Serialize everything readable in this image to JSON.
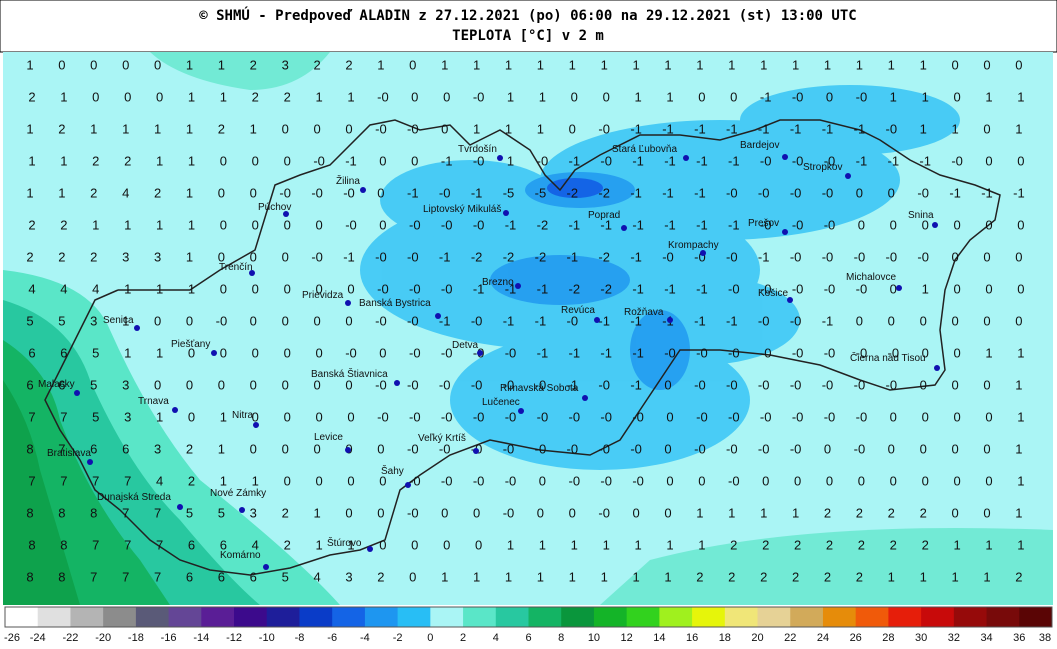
{
  "header": {
    "title": "© SHMÚ - Predpoveď ALADIN z 27.12.2021 (po) 06:00 na 29.12.2021 (st) 13:00 UTC",
    "subtitle": "TEPLOTA [°C] v 2 m"
  },
  "grid": {
    "rows": [
      [
        "1",
        "0",
        "0",
        "0",
        "0",
        "1",
        "1",
        "2",
        "3",
        "2",
        "2",
        "1",
        "0",
        "1",
        "1",
        "1",
        "1",
        "1",
        "1",
        "1",
        "1",
        "1",
        "1",
        "1",
        "1",
        "1",
        "1",
        "1",
        "1",
        "0",
        "0",
        "0"
      ],
      [
        "2",
        "1",
        "0",
        "0",
        "0",
        "1",
        "1",
        "2",
        "2",
        "1",
        "1",
        "-0",
        "0",
        "0",
        "-0",
        "1",
        "1",
        "0",
        "0",
        "1",
        "1",
        "0",
        "0",
        "-1",
        "-0",
        "0",
        "-0",
        "1",
        "1",
        "0",
        "1",
        "1"
      ],
      [
        "1",
        "2",
        "1",
        "1",
        "1",
        "1",
        "2",
        "1",
        "0",
        "0",
        "0",
        "-0",
        "-0",
        "0",
        "1",
        "1",
        "1",
        "0",
        "-0",
        "-1",
        "-1",
        "-1",
        "-1",
        "-1",
        "-1",
        "-1",
        "-1",
        "-0",
        "1",
        "1",
        "0",
        "1"
      ],
      [
        "1",
        "1",
        "2",
        "2",
        "1",
        "1",
        "0",
        "0",
        "0",
        "-0",
        "-1",
        "0",
        "0",
        "-1",
        "-0",
        "1",
        "-0",
        "-1",
        "-0",
        "-1",
        "-1",
        "-1",
        "-1",
        "-0",
        "-0",
        "-0",
        "-1",
        "-1",
        "-1",
        "-0",
        "0",
        "0"
      ],
      [
        "1",
        "1",
        "2",
        "4",
        "2",
        "1",
        "0",
        "0",
        "-0",
        "-0",
        "-0",
        "0",
        "-1",
        "-0",
        "-1",
        "-5",
        "-5",
        "-2",
        "-2",
        "-1",
        "-1",
        "-1",
        "-0",
        "-0",
        "-0",
        "-0",
        "0",
        "0",
        "-0",
        "-1",
        "-1",
        "-1"
      ],
      [
        "2",
        "2",
        "1",
        "1",
        "1",
        "1",
        "0",
        "0",
        "0",
        "0",
        "-0",
        "0",
        "-0",
        "-0",
        "-0",
        "-1",
        "-2",
        "-1",
        "-1",
        "-1",
        "-1",
        "-1",
        "-1",
        "-0",
        "-0",
        "-0",
        "0",
        "0",
        "0",
        "0",
        "0",
        "0"
      ],
      [
        "2",
        "2",
        "2",
        "3",
        "3",
        "1",
        "0",
        "0",
        "0",
        "-0",
        "-1",
        "-0",
        "-0",
        "-1",
        "-2",
        "-2",
        "-2",
        "-1",
        "-2",
        "-1",
        "-0",
        "-0",
        "-0",
        "-1",
        "-0",
        "-0",
        "-0",
        "-0",
        "-0",
        "0",
        "0",
        "0"
      ],
      [
        "4",
        "4",
        "4",
        "1",
        "1",
        "1",
        "0",
        "0",
        "0",
        "0",
        "0",
        "-0",
        "-0",
        "-0",
        "-1",
        "-1",
        "-1",
        "-2",
        "-2",
        "-1",
        "-1",
        "-1",
        "-0",
        "-0",
        "-0",
        "-0",
        "-0",
        "0",
        "1",
        "0",
        "0",
        "0"
      ],
      [
        "5",
        "5",
        "3",
        "1",
        "0",
        "0",
        "-0",
        "0",
        "0",
        "0",
        "0",
        "-0",
        "-0",
        "-1",
        "-0",
        "-1",
        "-1",
        "-0",
        "-1",
        "-1",
        "-1",
        "-1",
        "-1",
        "-0",
        "-0",
        "-1",
        "0",
        "0",
        "0",
        "0",
        "0",
        "0"
      ],
      [
        "6",
        "6",
        "5",
        "1",
        "1",
        "0",
        "0",
        "0",
        "0",
        "0",
        "-0",
        "0",
        "-0",
        "-0",
        "-0",
        "-0",
        "-1",
        "-1",
        "-1",
        "-1",
        "-0",
        "-0",
        "-0",
        "-0",
        "-0",
        "-0",
        "-0",
        "-0",
        "0",
        "0",
        "1",
        "1"
      ],
      [
        "6",
        "6",
        "5",
        "3",
        "0",
        "0",
        "0",
        "0",
        "0",
        "0",
        "0",
        "-0",
        "-0",
        "-0",
        "-0",
        "-0",
        "-0",
        "-1",
        "-0",
        "-1",
        "0",
        "-0",
        "-0",
        "-0",
        "-0",
        "-0",
        "-0",
        "-0",
        "0",
        "0",
        "0",
        "1"
      ],
      [
        "7",
        "7",
        "5",
        "3",
        "1",
        "0",
        "1",
        "0",
        "0",
        "0",
        "0",
        "-0",
        "-0",
        "-0",
        "-0",
        "-0",
        "-0",
        "-0",
        "-0",
        "-0",
        "0",
        "-0",
        "-0",
        "-0",
        "-0",
        "-0",
        "-0",
        "0",
        "0",
        "0",
        "0",
        "1"
      ],
      [
        "8",
        "7",
        "6",
        "6",
        "3",
        "2",
        "1",
        "0",
        "0",
        "0",
        "0",
        "0",
        "-0",
        "-0",
        "-0",
        "-0",
        "-0",
        "-0",
        "-0",
        "-0",
        "0",
        "-0",
        "-0",
        "-0",
        "-0",
        "0",
        "-0",
        "0",
        "0",
        "0",
        "0",
        "1"
      ],
      [
        "7",
        "7",
        "7",
        "7",
        "4",
        "2",
        "1",
        "1",
        "0",
        "0",
        "0",
        "0",
        "-0",
        "-0",
        "-0",
        "-0",
        "0",
        "-0",
        "-0",
        "-0",
        "0",
        "0",
        "-0",
        "0",
        "0",
        "0",
        "0",
        "0",
        "0",
        "0",
        "0",
        "1"
      ],
      [
        "8",
        "8",
        "8",
        "7",
        "7",
        "5",
        "5",
        "3",
        "2",
        "1",
        "0",
        "0",
        "-0",
        "0",
        "0",
        "-0",
        "0",
        "0",
        "-0",
        "0",
        "0",
        "1",
        "1",
        "1",
        "1",
        "2",
        "2",
        "2",
        "2",
        "0",
        "0",
        "1"
      ],
      [
        "8",
        "8",
        "7",
        "7",
        "7",
        "6",
        "6",
        "4",
        "2",
        "1",
        "1",
        "0",
        "0",
        "0",
        "0",
        "1",
        "1",
        "1",
        "1",
        "1",
        "1",
        "1",
        "2",
        "2",
        "2",
        "2",
        "2",
        "2",
        "2",
        "1",
        "1",
        "1"
      ],
      [
        "8",
        "8",
        "7",
        "7",
        "7",
        "6",
        "6",
        "6",
        "5",
        "4",
        "3",
        "2",
        "0",
        "1",
        "1",
        "1",
        "1",
        "1",
        "1",
        "1",
        "1",
        "2",
        "2",
        "2",
        "2",
        "2",
        "2",
        "1",
        "1",
        "1",
        "1",
        "2"
      ]
    ]
  },
  "cities": [
    "Tvrdošín",
    "Stará Ľubovňa",
    "Bardejov",
    "Stropkov",
    "Žilina",
    "Liptovský Mikuláš",
    "Poprad",
    "Púchov",
    "Snina",
    "Prešov",
    "Krompachy",
    "Trenčín",
    "Michalovce",
    "Brezno",
    "Košice",
    "Prievidza",
    "Banská Bystrica",
    "Rožňava",
    "Revúca",
    "Senica",
    "Detva",
    "Piešťany",
    "Čierna nad Tisou",
    "Banská Štiavnica",
    "Malacky",
    "Rimavská Sobota",
    "Trnava",
    "Lučenec",
    "Nitra",
    "Levice",
    "Veľký Krtíš",
    "Bratislava",
    "Šahy",
    "Dunajská Streda",
    "Nové Zámky",
    "Štúrovo",
    "Komárno"
  ],
  "scale": {
    "labels": [
      -26,
      -24,
      -22,
      -20,
      -18,
      -16,
      -14,
      -12,
      -10,
      -8,
      -6,
      -4,
      -2,
      0,
      2,
      4,
      6,
      8,
      10,
      12,
      14,
      16,
      18,
      20,
      22,
      24,
      26,
      28,
      30,
      32,
      34,
      36,
      38
    ],
    "colors": [
      "#ffffff",
      "#e0e0e0",
      "#b4b4b4",
      "#8c8c8c",
      "#5a5a78",
      "#644696",
      "#5a1e96",
      "#3c0a8c",
      "#1e1e9a",
      "#0a3cc8",
      "#1464e6",
      "#1e96f0",
      "#28bef5",
      "#aaf5f5",
      "#5ae6c8",
      "#28c8a0",
      "#14b464",
      "#0a963c",
      "#14b428",
      "#32d21e",
      "#a0f01e",
      "#e6f50a",
      "#f0e678",
      "#e6d296",
      "#d2aa5a",
      "#e68c0a",
      "#f05a0a",
      "#e61e0a",
      "#c80a0a",
      "#960a0a",
      "#780a0a",
      "#5a0505"
    ]
  }
}
